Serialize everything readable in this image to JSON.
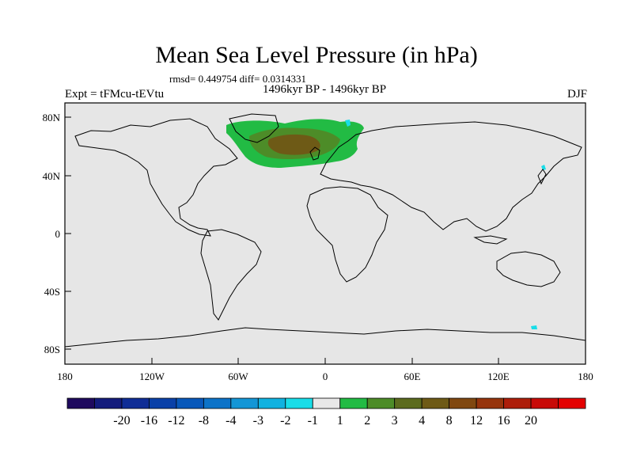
{
  "title": "Mean Sea Level Pressure (in hPa)",
  "stats": "rmsd= 0.449754 diff= 0.0314331",
  "expt_label": "Expt = tFMcu-tEVtu",
  "period_label": "1496kyr BP - 1496kyr BP",
  "season_label": "DJF",
  "lat_ticks": [
    "80N",
    "40N",
    "0",
    "40S",
    "80S"
  ],
  "lon_ticks": [
    "180",
    "120W",
    "60W",
    "0",
    "60E",
    "120E",
    "180"
  ],
  "colorbar": {
    "colors": [
      "#1f0a5e",
      "#141c7c",
      "#0f2d96",
      "#0a41a8",
      "#0858ba",
      "#0c73c8",
      "#1496d6",
      "#10b2e0",
      "#19dde8",
      "#e8e8e8",
      "#22bb44",
      "#4d8c28",
      "#5c6b1e",
      "#6e5a16",
      "#804810",
      "#96340c",
      "#ad1e0a",
      "#c80a08",
      "#e40000"
    ],
    "labels": [
      "-20",
      "-16",
      "-12",
      "-8",
      "-4",
      "-3",
      "-2",
      "-1",
      "1",
      "2",
      "3",
      "4",
      "8",
      "12",
      "16",
      "20"
    ]
  },
  "colors": {
    "ocean": "#e6e6e6",
    "coast": "#000000",
    "anomaly_level_1": "#22bb44",
    "anomaly_level_2": "#4d8c28",
    "anomaly_level_3": "#6e5a16",
    "negative_level": "#19dde8"
  }
}
